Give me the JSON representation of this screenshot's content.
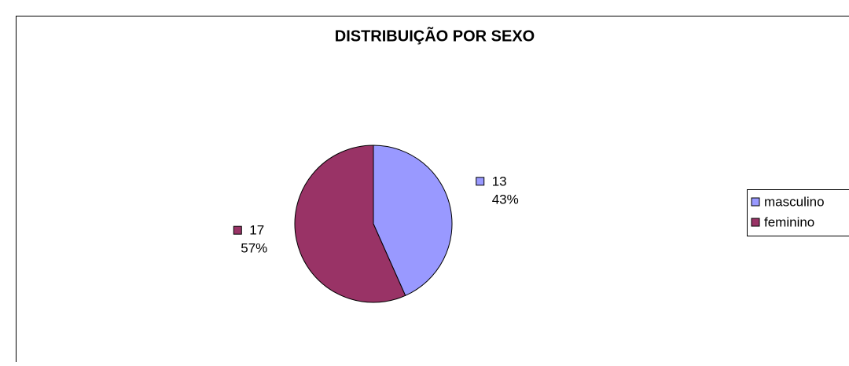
{
  "chart_data": {
    "type": "pie",
    "title": "DISTRIBUIÇÃO POR SEXO",
    "categories": [
      "masculino",
      "feminino"
    ],
    "values": [
      13,
      17
    ],
    "percent_labels": [
      "43%",
      "57%"
    ],
    "colors": [
      "#9999ff",
      "#993366"
    ],
    "legend": "right"
  }
}
